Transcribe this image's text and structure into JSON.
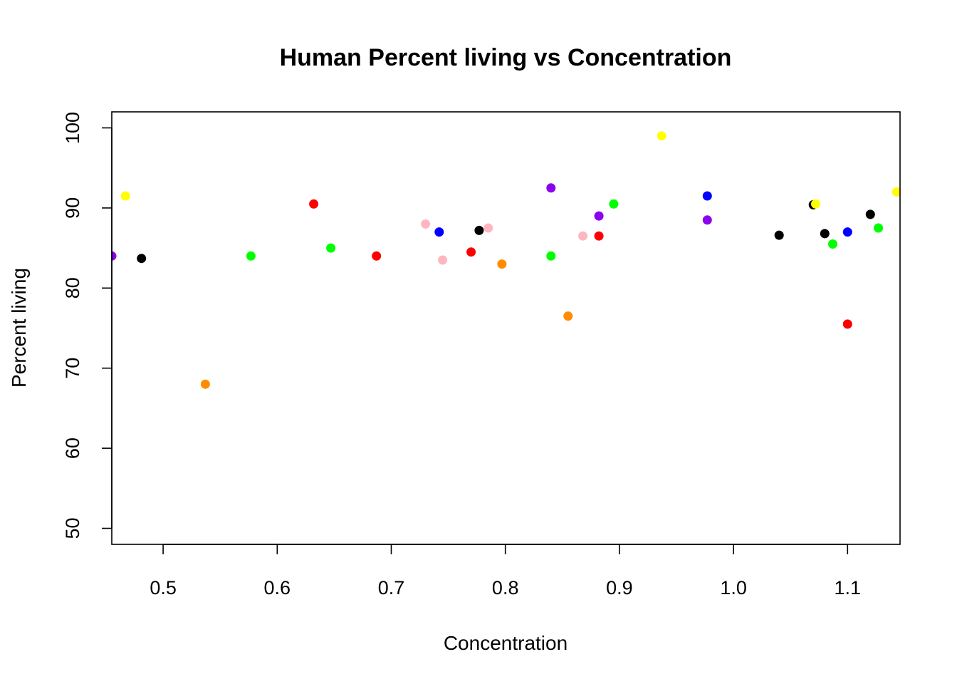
{
  "chart_data": {
    "type": "scatter",
    "title": "Human Percent living vs Concentration",
    "xlabel": "Concentration",
    "ylabel": "Percent living",
    "xlim": [
      0.455,
      1.146
    ],
    "ylim": [
      48,
      102
    ],
    "x_ticks": [
      0.5,
      0.6,
      0.7,
      0.8,
      0.9,
      1.0,
      1.1
    ],
    "x_tick_labels": [
      "0.5",
      "0.6",
      "0.7",
      "0.8",
      "0.9",
      "1.0",
      "1.1"
    ],
    "y_ticks": [
      50,
      60,
      70,
      80,
      90,
      100
    ],
    "y_tick_labels": [
      "50",
      "60",
      "70",
      "80",
      "90",
      "100"
    ],
    "grid": false,
    "points": [
      {
        "x": 0.455,
        "y": 84.0,
        "color": "#8B00EE"
      },
      {
        "x": 0.467,
        "y": 91.5,
        "color": "#FFFF00"
      },
      {
        "x": 0.481,
        "y": 83.7,
        "color": "#000000"
      },
      {
        "x": 0.537,
        "y": 68.0,
        "color": "#FF8C00"
      },
      {
        "x": 0.577,
        "y": 84.0,
        "color": "#00FF00"
      },
      {
        "x": 0.632,
        "y": 90.5,
        "color": "#FF0000"
      },
      {
        "x": 0.647,
        "y": 85.0,
        "color": "#00FF00"
      },
      {
        "x": 0.687,
        "y": 84.0,
        "color": "#FF0000"
      },
      {
        "x": 0.73,
        "y": 88.0,
        "color": "#FFB6C1"
      },
      {
        "x": 0.742,
        "y": 87.0,
        "color": "#0000FF"
      },
      {
        "x": 0.745,
        "y": 83.5,
        "color": "#FFB6C1"
      },
      {
        "x": 0.77,
        "y": 84.5,
        "color": "#FF0000"
      },
      {
        "x": 0.777,
        "y": 87.2,
        "color": "#000000"
      },
      {
        "x": 0.785,
        "y": 87.5,
        "color": "#FFB6C1"
      },
      {
        "x": 0.797,
        "y": 83.0,
        "color": "#FF8C00"
      },
      {
        "x": 0.84,
        "y": 92.5,
        "color": "#8B00EE"
      },
      {
        "x": 0.84,
        "y": 84.0,
        "color": "#00FF00"
      },
      {
        "x": 0.855,
        "y": 76.5,
        "color": "#FF8C00"
      },
      {
        "x": 0.868,
        "y": 86.5,
        "color": "#FFB6C1"
      },
      {
        "x": 0.882,
        "y": 89.0,
        "color": "#8B00EE"
      },
      {
        "x": 0.882,
        "y": 86.5,
        "color": "#FF0000"
      },
      {
        "x": 0.895,
        "y": 90.5,
        "color": "#00FF00"
      },
      {
        "x": 0.937,
        "y": 99.0,
        "color": "#FFFF00"
      },
      {
        "x": 0.977,
        "y": 91.5,
        "color": "#0000FF"
      },
      {
        "x": 0.977,
        "y": 88.5,
        "color": "#8B00EE"
      },
      {
        "x": 1.04,
        "y": 86.6,
        "color": "#000000"
      },
      {
        "x": 1.07,
        "y": 90.4,
        "color": "#000000"
      },
      {
        "x": 1.072,
        "y": 90.5,
        "color": "#FFFF00"
      },
      {
        "x": 1.08,
        "y": 86.8,
        "color": "#000000"
      },
      {
        "x": 1.087,
        "y": 85.5,
        "color": "#00FF00"
      },
      {
        "x": 1.1,
        "y": 87.0,
        "color": "#0000FF"
      },
      {
        "x": 1.1,
        "y": 75.5,
        "color": "#FF0000"
      },
      {
        "x": 1.12,
        "y": 89.2,
        "color": "#000000"
      },
      {
        "x": 1.127,
        "y": 87.5,
        "color": "#00FF00"
      },
      {
        "x": 1.143,
        "y": 92.0,
        "color": "#FFFF00"
      }
    ]
  }
}
